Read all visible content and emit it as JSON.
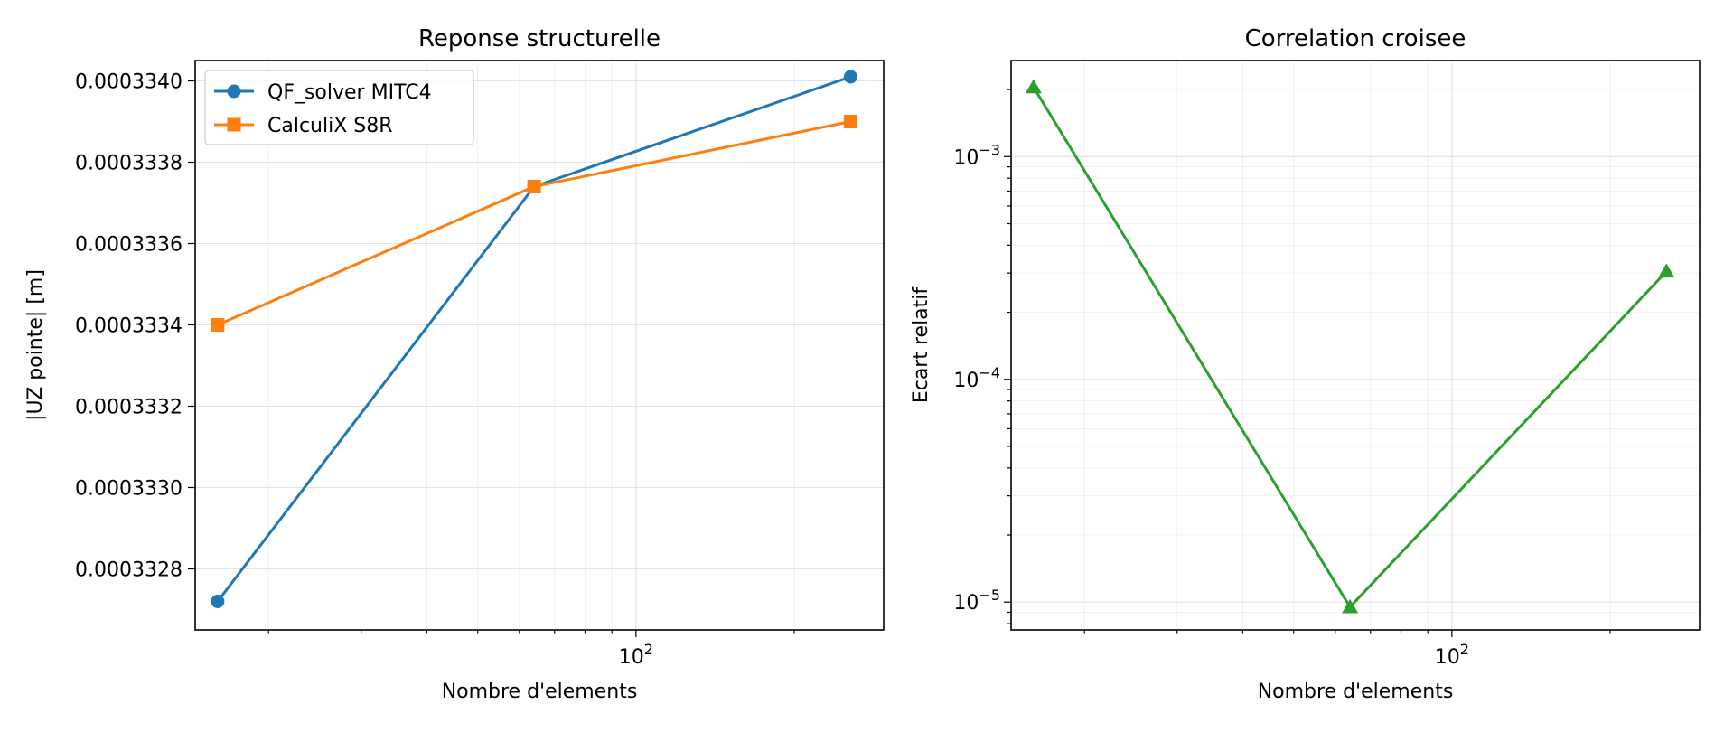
{
  "chart_data": [
    {
      "type": "line",
      "title": "Reponse structurelle",
      "xlabel": "Nombre d'elements",
      "ylabel": "|UZ pointe| [m]",
      "xscale": "log",
      "xlim": [
        14.5,
        296
      ],
      "ylim": [
        0.00033265,
        0.00033405
      ],
      "x_tick_labels": [
        {
          "base": "10",
          "exp": "2",
          "value": 100
        }
      ],
      "y_ticks": [
        0.0003328,
        0.000333,
        0.0003332,
        0.0003334,
        0.0003336,
        0.0003338,
        0.000334
      ],
      "y_tick_labels": [
        "0.0003328",
        "0.0003330",
        "0.0003332",
        "0.0003334",
        "0.0003336",
        "0.0003338",
        "0.0003340"
      ],
      "grid": true,
      "legend_position": "upper-left",
      "series": [
        {
          "name": "QF_solver MITC4",
          "color": "#1f77b4",
          "marker": "circle",
          "x": [
            16,
            64,
            256
          ],
          "y": [
            0.00033272,
            0.00033374,
            0.00033401
          ]
        },
        {
          "name": "CalculiX S8R",
          "color": "#ff7f0e",
          "marker": "square",
          "x": [
            16,
            64,
            256
          ],
          "y": [
            0.0003334,
            0.00033374,
            0.0003339
          ]
        }
      ]
    },
    {
      "type": "line",
      "title": "Correlation croisee",
      "xlabel": "Nombre d'elements",
      "ylabel": "Ecart relatif",
      "xscale": "log",
      "yscale": "log",
      "xlim": [
        14.5,
        296
      ],
      "ylim": [
        7.5e-06,
        0.0027
      ],
      "x_tick_labels": [
        {
          "base": "10",
          "exp": "2",
          "value": 100
        }
      ],
      "y_tick_labels": [
        {
          "base": "10",
          "exp": "−3",
          "value": 0.001
        },
        {
          "base": "10",
          "exp": "−4",
          "value": 0.0001
        },
        {
          "base": "10",
          "exp": "−5",
          "value": 1e-05
        }
      ],
      "grid": true,
      "series": [
        {
          "color": "#2ca02c",
          "marker": "triangle",
          "x": [
            16,
            64,
            256
          ],
          "y": [
            0.00205,
            9.5e-06,
            0.000305
          ]
        }
      ]
    }
  ]
}
